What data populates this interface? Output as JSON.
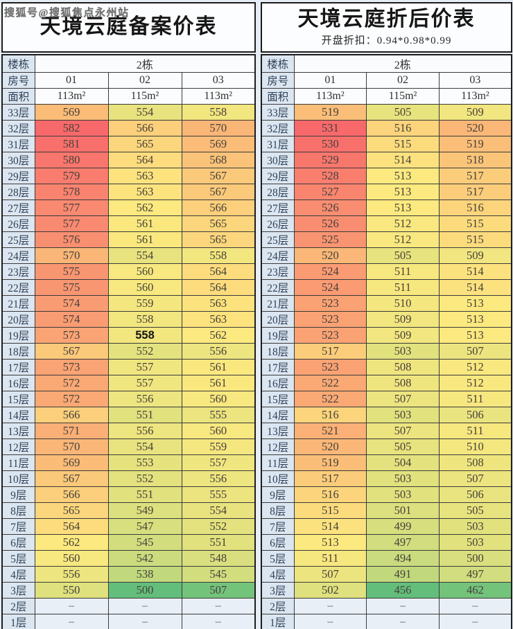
{
  "watermark": "搜狐号@搜狐焦点永州站",
  "dash": "–",
  "color_scale": {
    "min": "#63BE7B",
    "mid": "#FCE97F",
    "max": "#F8696B"
  },
  "emphasis_cell": {
    "table": 0,
    "floor": "19层",
    "col": 1
  },
  "tables": [
    {
      "id": "registered",
      "title": "天境云庭备案价表",
      "subtitle": "",
      "header": {
        "building_label": "楼栋",
        "building_value": "2栋",
        "room_label": "房号",
        "rooms": [
          "01",
          "02",
          "03"
        ],
        "area_label": "面积",
        "areas": [
          "113m²",
          "115m²",
          "113m²"
        ]
      },
      "rows": [
        {
          "floor": "33层",
          "values": [
            569,
            554,
            558
          ]
        },
        {
          "floor": "32层",
          "values": [
            582,
            566,
            570
          ]
        },
        {
          "floor": "31层",
          "values": [
            581,
            565,
            569
          ]
        },
        {
          "floor": "30层",
          "values": [
            580,
            564,
            568
          ]
        },
        {
          "floor": "29层",
          "values": [
            579,
            563,
            567
          ]
        },
        {
          "floor": "28层",
          "values": [
            578,
            563,
            567
          ]
        },
        {
          "floor": "27层",
          "values": [
            577,
            562,
            566
          ]
        },
        {
          "floor": "26层",
          "values": [
            577,
            561,
            565
          ]
        },
        {
          "floor": "25层",
          "values": [
            576,
            561,
            565
          ]
        },
        {
          "floor": "24层",
          "values": [
            570,
            554,
            558
          ]
        },
        {
          "floor": "23层",
          "values": [
            575,
            560,
            564
          ]
        },
        {
          "floor": "22层",
          "values": [
            575,
            560,
            564
          ]
        },
        {
          "floor": "21层",
          "values": [
            574,
            559,
            563
          ]
        },
        {
          "floor": "20层",
          "values": [
            574,
            558,
            563
          ]
        },
        {
          "floor": "19层",
          "values": [
            573,
            558,
            562
          ]
        },
        {
          "floor": "18层",
          "values": [
            567,
            552,
            556
          ]
        },
        {
          "floor": "17层",
          "values": [
            573,
            557,
            561
          ]
        },
        {
          "floor": "16层",
          "values": [
            572,
            557,
            561
          ]
        },
        {
          "floor": "15层",
          "values": [
            572,
            556,
            560
          ]
        },
        {
          "floor": "14层",
          "values": [
            566,
            551,
            555
          ]
        },
        {
          "floor": "13层",
          "values": [
            571,
            556,
            560
          ]
        },
        {
          "floor": "12层",
          "values": [
            570,
            554,
            559
          ]
        },
        {
          "floor": "11层",
          "values": [
            569,
            553,
            557
          ]
        },
        {
          "floor": "10层",
          "values": [
            567,
            552,
            556
          ]
        },
        {
          "floor": "9层",
          "values": [
            566,
            551,
            555
          ]
        },
        {
          "floor": "8层",
          "values": [
            565,
            549,
            554
          ]
        },
        {
          "floor": "7层",
          "values": [
            564,
            547,
            552
          ]
        },
        {
          "floor": "6层",
          "values": [
            562,
            545,
            551
          ]
        },
        {
          "floor": "5层",
          "values": [
            560,
            542,
            548
          ]
        },
        {
          "floor": "4层",
          "values": [
            556,
            538,
            545
          ]
        },
        {
          "floor": "3层",
          "values": [
            550,
            500,
            507
          ]
        },
        {
          "floor": "2层",
          "values": [
            null,
            null,
            null
          ]
        },
        {
          "floor": "1层",
          "values": [
            null,
            null,
            null
          ]
        }
      ]
    },
    {
      "id": "discounted",
      "title": "天境云庭折后价表",
      "subtitle": "开盘折扣：0.94*0.98*0.99",
      "header": {
        "building_label": "楼栋",
        "building_value": "2栋",
        "room_label": "房号",
        "rooms": [
          "01",
          "02",
          "03"
        ],
        "area_label": "面积",
        "areas": [
          "113m²",
          "115m²",
          "113m²"
        ]
      },
      "rows": [
        {
          "floor": "33层",
          "values": [
            519,
            505,
            509
          ]
        },
        {
          "floor": "32层",
          "values": [
            531,
            516,
            520
          ]
        },
        {
          "floor": "31层",
          "values": [
            530,
            515,
            519
          ]
        },
        {
          "floor": "30层",
          "values": [
            529,
            514,
            518
          ]
        },
        {
          "floor": "29层",
          "values": [
            528,
            513,
            517
          ]
        },
        {
          "floor": "28层",
          "values": [
            527,
            513,
            517
          ]
        },
        {
          "floor": "27层",
          "values": [
            526,
            513,
            516
          ]
        },
        {
          "floor": "26层",
          "values": [
            526,
            512,
            515
          ]
        },
        {
          "floor": "25层",
          "values": [
            525,
            512,
            515
          ]
        },
        {
          "floor": "24层",
          "values": [
            520,
            505,
            509
          ]
        },
        {
          "floor": "23层",
          "values": [
            524,
            511,
            514
          ]
        },
        {
          "floor": "22层",
          "values": [
            524,
            511,
            514
          ]
        },
        {
          "floor": "21层",
          "values": [
            523,
            510,
            513
          ]
        },
        {
          "floor": "20层",
          "values": [
            523,
            509,
            513
          ]
        },
        {
          "floor": "19层",
          "values": [
            523,
            509,
            513
          ]
        },
        {
          "floor": "18层",
          "values": [
            517,
            503,
            507
          ]
        },
        {
          "floor": "17层",
          "values": [
            523,
            508,
            512
          ]
        },
        {
          "floor": "16层",
          "values": [
            522,
            508,
            512
          ]
        },
        {
          "floor": "15层",
          "values": [
            522,
            507,
            511
          ]
        },
        {
          "floor": "14层",
          "values": [
            516,
            503,
            506
          ]
        },
        {
          "floor": "13层",
          "values": [
            521,
            507,
            511
          ]
        },
        {
          "floor": "12层",
          "values": [
            520,
            505,
            510
          ]
        },
        {
          "floor": "11层",
          "values": [
            519,
            504,
            508
          ]
        },
        {
          "floor": "10层",
          "values": [
            517,
            503,
            507
          ]
        },
        {
          "floor": "9层",
          "values": [
            516,
            503,
            506
          ]
        },
        {
          "floor": "8层",
          "values": [
            515,
            501,
            505
          ]
        },
        {
          "floor": "7层",
          "values": [
            514,
            499,
            503
          ]
        },
        {
          "floor": "6层",
          "values": [
            513,
            497,
            503
          ]
        },
        {
          "floor": "5层",
          "values": [
            511,
            494,
            500
          ]
        },
        {
          "floor": "4层",
          "values": [
            507,
            491,
            497
          ]
        },
        {
          "floor": "3层",
          "values": [
            502,
            456,
            462
          ]
        },
        {
          "floor": "2层",
          "values": [
            null,
            null,
            null
          ]
        },
        {
          "floor": "1层",
          "values": [
            null,
            null,
            null
          ]
        }
      ]
    }
  ]
}
